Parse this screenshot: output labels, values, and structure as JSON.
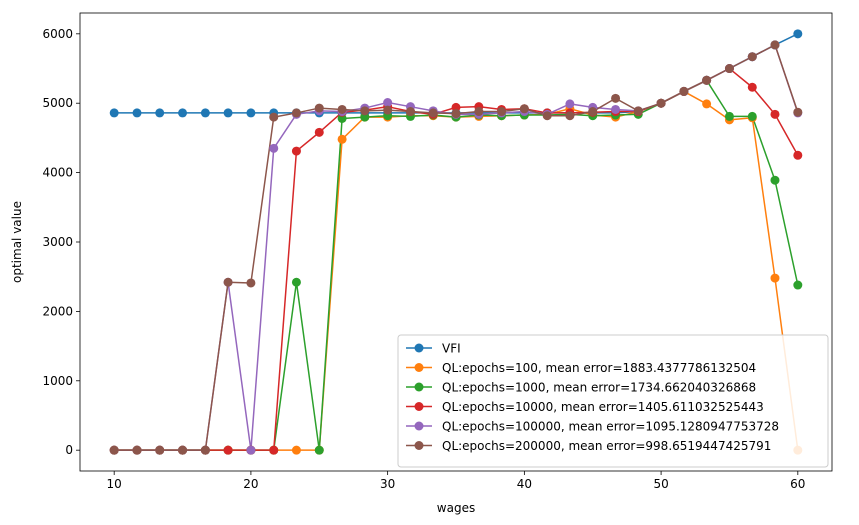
{
  "chart_data": {
    "type": "line",
    "title": "",
    "xlabel": "wages",
    "ylabel": "optimal value",
    "xlim": [
      7.5,
      62.5
    ],
    "ylim": [
      -300,
      6300
    ],
    "xticks": [
      10,
      20,
      30,
      40,
      50,
      60
    ],
    "yticks": [
      0,
      1000,
      2000,
      3000,
      4000,
      5000,
      6000
    ],
    "grid": false,
    "legend_position": "lower-right",
    "x": [
      10.0,
      11.67,
      13.33,
      15.0,
      16.67,
      18.33,
      20.0,
      21.67,
      23.33,
      25.0,
      26.67,
      28.33,
      30.0,
      31.67,
      33.33,
      35.0,
      36.67,
      38.33,
      40.0,
      41.67,
      43.33,
      45.0,
      46.67,
      48.33,
      50.0,
      51.67,
      53.33,
      55.0,
      56.67,
      58.33,
      60.0
    ],
    "series": [
      {
        "name": "VFI",
        "color": "#1f77b4",
        "values": [
          4860,
          4860,
          4860,
          4860,
          4860,
          4860,
          4860,
          4860,
          4860,
          4860,
          4860,
          4860,
          4860,
          4860,
          4860,
          4860,
          4860,
          4860,
          4860,
          4860,
          4860,
          4860,
          4860,
          4880,
          5000,
          5170,
          5330,
          5500,
          5670,
          5840,
          6000
        ]
      },
      {
        "name": "QL:epochs=100, mean error=1883.4377786132504",
        "color": "#ff7f0e",
        "values": [
          0,
          0,
          0,
          0,
          0,
          0,
          0,
          0,
          0,
          0,
          4480,
          4800,
          4800,
          4820,
          4820,
          4800,
          4810,
          4820,
          4830,
          4840,
          4920,
          4830,
          4800,
          4880,
          5000,
          5170,
          4990,
          4760,
          4790,
          2480,
          0
        ]
      },
      {
        "name": "QL:epochs=1000, mean error=1734.662040326868",
        "color": "#2ca02c",
        "values": [
          0,
          0,
          0,
          0,
          0,
          0,
          0,
          0,
          2420,
          0,
          4780,
          4800,
          4820,
          4810,
          4830,
          4800,
          4830,
          4820,
          4830,
          4830,
          4840,
          4820,
          4830,
          4840,
          5000,
          5170,
          5330,
          4810,
          4810,
          3890,
          2380
        ]
      },
      {
        "name": "QL:epochs=10000, mean error=1405.611032525443",
        "color": "#d62728",
        "values": [
          0,
          0,
          0,
          0,
          0,
          0,
          0,
          0,
          4310,
          4580,
          4870,
          4900,
          4950,
          4880,
          4840,
          4940,
          4950,
          4910,
          4920,
          4860,
          4860,
          4870,
          4880,
          4880,
          5000,
          5170,
          5330,
          5500,
          5230,
          4840,
          4250
        ]
      },
      {
        "name": "QL:epochs=100000, mean error=1095.1280947753728",
        "color": "#9467bd",
        "values": [
          0,
          0,
          0,
          0,
          0,
          2420,
          0,
          4350,
          4840,
          4890,
          4880,
          4930,
          5010,
          4950,
          4890,
          4840,
          4840,
          4860,
          4880,
          4840,
          4990,
          4940,
          4910,
          4890,
          5000,
          5170,
          5330,
          5500,
          5670,
          5840,
          4860
        ]
      },
      {
        "name": "QL:epochs=200000, mean error=998.6519447425791",
        "color": "#8c564b",
        "values": [
          0,
          0,
          0,
          0,
          0,
          2420,
          2410,
          4800,
          4860,
          4930,
          4910,
          4890,
          4900,
          4880,
          4860,
          4850,
          4880,
          4880,
          4920,
          4820,
          4820,
          4880,
          5070,
          4890,
          5000,
          5170,
          5330,
          5500,
          5670,
          5840,
          4870
        ]
      }
    ]
  }
}
